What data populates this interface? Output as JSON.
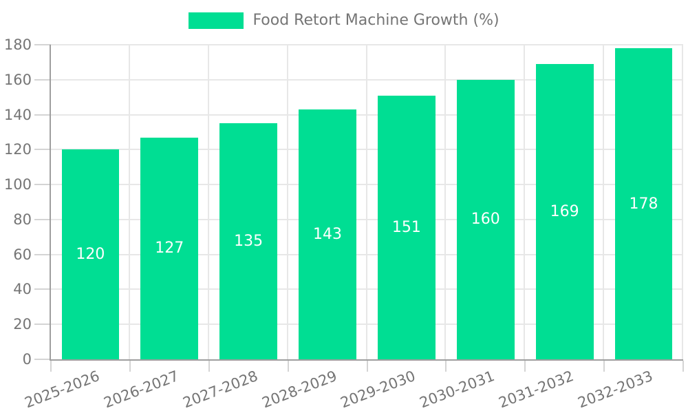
{
  "chart_data": {
    "type": "bar",
    "title": "Food Retort Machine Growth (%)",
    "legend": {
      "label": "Food Retort Machine Growth (%)",
      "position": "top"
    },
    "categories": [
      "2025-2026",
      "2026-2027",
      "2027-2028",
      "2028-2029",
      "2029-2030",
      "2030-2031",
      "2031-2032",
      "2032-2033"
    ],
    "values": [
      120,
      127,
      135,
      143,
      151,
      160,
      169,
      178
    ],
    "value_labels": [
      "120",
      "127",
      "135",
      "143",
      "151",
      "160",
      "169",
      "178"
    ],
    "xlabel": "",
    "ylabel": "",
    "ylim": [
      0,
      180
    ],
    "yticks": [
      0,
      20,
      40,
      60,
      80,
      100,
      120,
      140,
      160,
      180
    ],
    "grid": true,
    "x_label_rotation_deg": -21
  },
  "colors": {
    "bar": "#00DE93",
    "bar_value_text": "#FFFFFF",
    "grid": "#E7E7E7",
    "tick": "#D4D4D4",
    "axis": "#9E9E9E",
    "label_text": "#757575",
    "background": "#FFFFFF"
  }
}
